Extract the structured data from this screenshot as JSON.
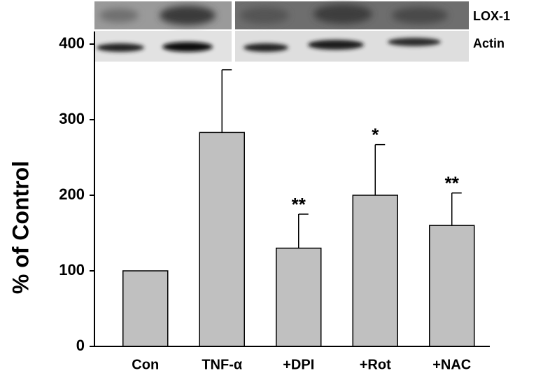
{
  "chart_data": {
    "type": "bar",
    "y_label": "% of Control",
    "categories": [
      "Con",
      "TNF-α",
      "+DPI",
      "+Rot",
      "+NAC"
    ],
    "values": [
      100,
      283,
      130,
      200,
      160
    ],
    "errors": [
      0,
      83,
      45,
      67,
      43
    ],
    "annotations": [
      null,
      null,
      "**",
      "*",
      "**"
    ],
    "color": "#c0c0c0",
    "ylim": [
      0,
      400
    ],
    "yticks": [
      0,
      100,
      200,
      300,
      400
    ],
    "blot_labels": [
      "LOX-1",
      "Actin"
    ]
  }
}
